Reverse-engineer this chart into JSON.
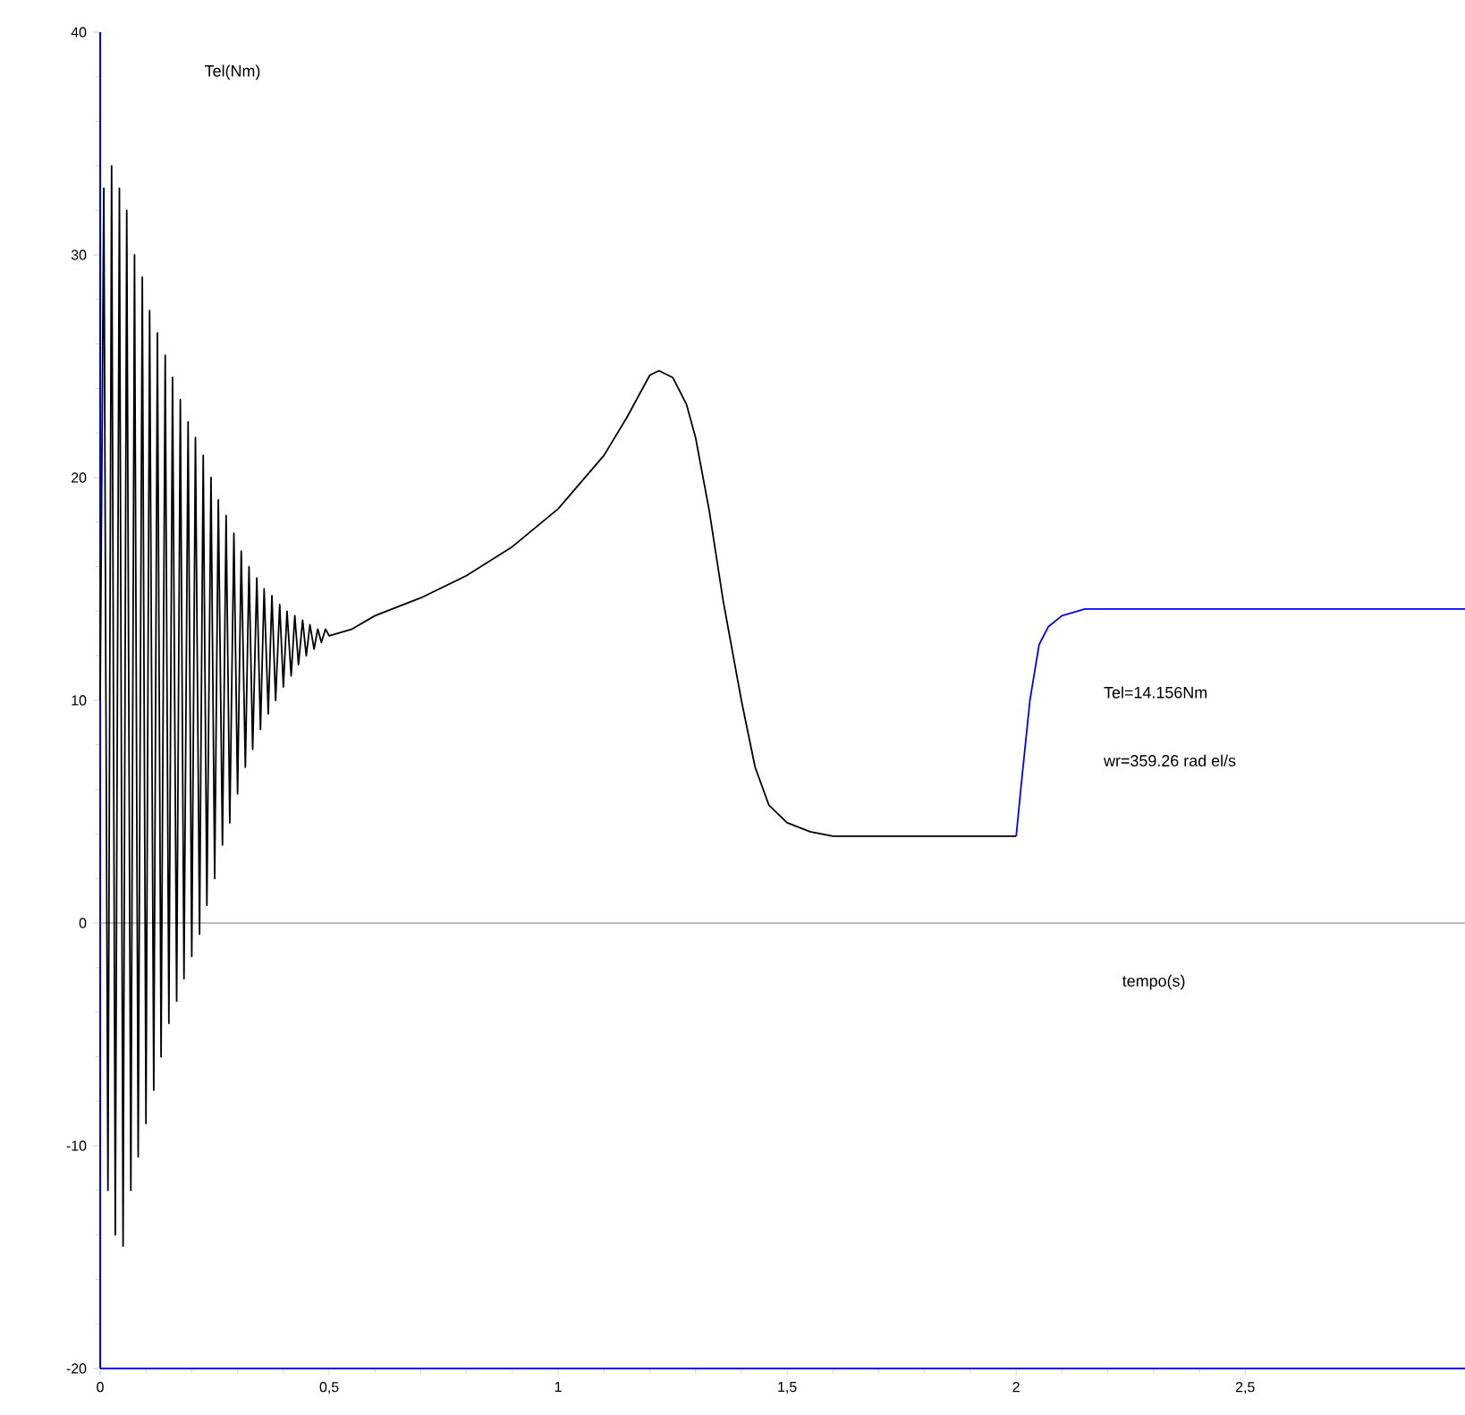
{
  "chart_data": {
    "type": "line",
    "xlabel": "tempo(s)",
    "ylabel": "Tel(Nm)",
    "annotations": [
      "Tel=14.156Nm",
      "wr=359.26 rad el/s"
    ],
    "xlim": [
      0,
      2.98
    ],
    "ylim": [
      -20,
      40
    ],
    "xticks": [
      0,
      {
        "value": 0.5,
        "label": "0,5"
      },
      1,
      {
        "value": 1.5,
        "label": "1,5"
      },
      2,
      {
        "value": 2.5,
        "label": "2,5"
      }
    ],
    "yticks": [
      -20,
      -10,
      0,
      10,
      20,
      30,
      40
    ],
    "ref_lines": [
      {
        "axis": "y",
        "value": 0,
        "color": "#808080"
      }
    ],
    "grid": false,
    "marker": "none",
    "line_style": "solid",
    "series": [
      {
        "color": "#000000",
        "x": [
          0,
          0.008,
          0.017,
          0.025,
          0.033,
          0.042,
          0.05,
          0.058,
          0.067,
          0.075,
          0.083,
          0.092,
          0.1,
          0.108,
          0.117,
          0.125,
          0.133,
          0.142,
          0.15,
          0.158,
          0.167,
          0.175,
          0.183,
          0.192,
          0.2,
          0.208,
          0.217,
          0.225,
          0.233,
          0.242,
          0.25,
          0.258,
          0.267,
          0.275,
          0.283,
          0.292,
          0.3,
          0.308,
          0.317,
          0.325,
          0.333,
          0.342,
          0.35,
          0.358,
          0.367,
          0.375,
          0.383,
          0.392,
          0.4,
          0.408,
          0.417,
          0.425,
          0.433,
          0.442,
          0.45,
          0.458,
          0.467,
          0.475,
          0.483,
          0.492,
          0.5,
          0.55,
          0.6,
          0.7,
          0.8,
          0.9,
          1.0,
          1.1,
          1.15,
          1.2,
          1.22,
          1.25,
          1.28,
          1.3,
          1.33,
          1.36,
          1.4,
          1.43,
          1.46,
          1.5,
          1.55,
          1.6,
          1.7,
          2.0
        ],
        "values": [
          10,
          33,
          -12,
          34,
          -14,
          33,
          -14.5,
          32,
          -12,
          30,
          -10.5,
          29,
          -9,
          27.5,
          -7.5,
          26.5,
          -6,
          25.5,
          -4.5,
          24.5,
          -3.5,
          23.5,
          -2.5,
          22.5,
          -1.5,
          21.8,
          -0.5,
          21,
          0.8,
          20,
          2,
          19,
          3.5,
          18.3,
          4.5,
          17.5,
          5.8,
          16.7,
          7,
          16,
          7.8,
          15.5,
          8.7,
          15,
          9.4,
          14.7,
          10,
          14.3,
          10.6,
          14,
          11.1,
          13.8,
          11.6,
          13.6,
          12,
          13.4,
          12.3,
          13.2,
          12.6,
          13.2,
          12.9,
          13.2,
          13.8,
          14.6,
          15.6,
          16.9,
          18.6,
          21,
          22.7,
          24.6,
          24.8,
          24.5,
          23.3,
          21.8,
          18.5,
          14.5,
          10,
          7,
          5.3,
          4.5,
          4.1,
          3.9,
          3.9,
          3.9
        ]
      },
      {
        "color": "#0000ff",
        "x": [
          2.0,
          2.01,
          2.03,
          2.05,
          2.07,
          2.1,
          2.15,
          2.98
        ],
        "values": [
          3.9,
          6,
          10,
          12.5,
          13.3,
          13.8,
          14.1,
          14.1
        ]
      }
    ]
  }
}
